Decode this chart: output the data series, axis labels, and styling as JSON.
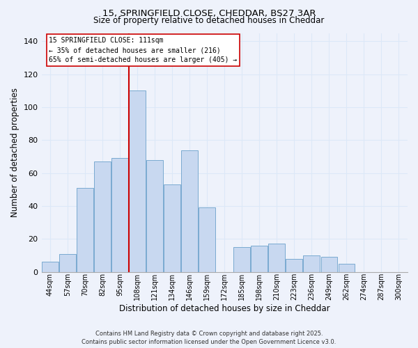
{
  "title": "15, SPRINGFIELD CLOSE, CHEDDAR, BS27 3AR",
  "subtitle": "Size of property relative to detached houses in Cheddar",
  "xlabel": "Distribution of detached houses by size in Cheddar",
  "ylabel": "Number of detached properties",
  "bar_labels": [
    "44sqm",
    "57sqm",
    "70sqm",
    "82sqm",
    "95sqm",
    "108sqm",
    "121sqm",
    "134sqm",
    "146sqm",
    "159sqm",
    "172sqm",
    "185sqm",
    "198sqm",
    "210sqm",
    "223sqm",
    "236sqm",
    "249sqm",
    "262sqm",
    "274sqm",
    "287sqm",
    "300sqm"
  ],
  "bar_heights": [
    6,
    11,
    51,
    67,
    69,
    110,
    68,
    53,
    74,
    39,
    0,
    15,
    16,
    17,
    8,
    10,
    9,
    5,
    0,
    0,
    0
  ],
  "bar_color": "#c8d8f0",
  "bar_edge_color": "#7aaad0",
  "vline_x_index": 5,
  "vline_color": "#cc0000",
  "ylim": [
    0,
    145
  ],
  "yticks": [
    0,
    20,
    40,
    60,
    80,
    100,
    120,
    140
  ],
  "annotation_title": "15 SPRINGFIELD CLOSE: 111sqm",
  "annotation_line1": "← 35% of detached houses are smaller (216)",
  "annotation_line2": "65% of semi-detached houses are larger (405) →",
  "annotation_box_color": "#ffffff",
  "annotation_box_edge": "#cc0000",
  "footer1": "Contains HM Land Registry data © Crown copyright and database right 2025.",
  "footer2": "Contains public sector information licensed under the Open Government Licence v3.0.",
  "grid_color": "#dce8f8",
  "background_color": "#eef2fb"
}
